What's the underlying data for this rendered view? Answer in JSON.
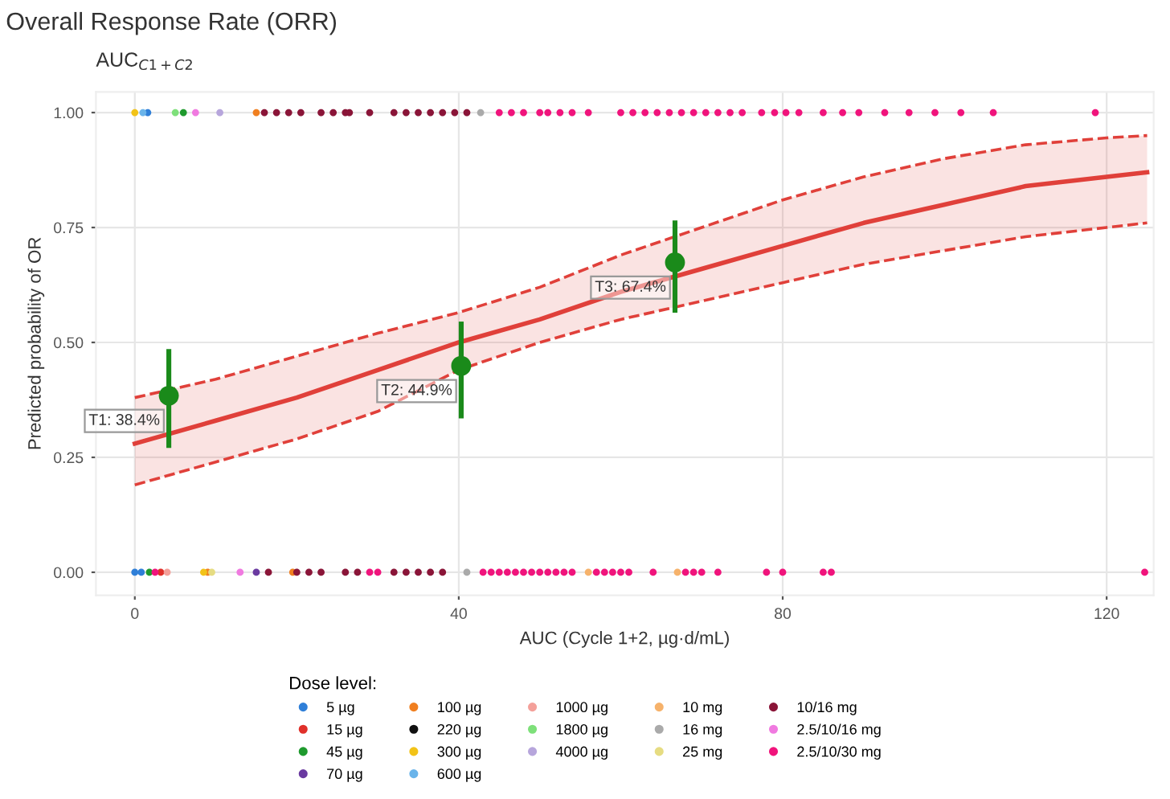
{
  "chart_data": {
    "type": "scatter",
    "title": "Overall Response Rate (ORR)",
    "subtitle": "AUC$_{C1+C2}$",
    "xlabel": "AUC (Cycle 1+2, µg·d/mL)",
    "ylabel": "Predicted probability of OR",
    "legend_title": "Dose level:",
    "legend": "bottom",
    "grid": true,
    "marker": "circle",
    "xlim": [
      -4.8,
      125.8
    ],
    "xticks": [
      0,
      40,
      80,
      120
    ],
    "ylim": [
      -0.05,
      1.045
    ],
    "yticks": [
      {
        "value": 0,
        "label": "0.00"
      },
      {
        "value": 0.25,
        "label": "0.25"
      },
      {
        "value": 0.5,
        "label": "0.50"
      },
      {
        "value": 0.75,
        "label": "0.75"
      },
      {
        "value": 1,
        "label": "1.00"
      }
    ],
    "series": [
      {
        "type": "line",
        "color": "#e0403a",
        "line_style": "dashed",
        "marker": "none",
        "x": [
          0,
          10,
          20,
          30,
          40,
          50,
          60,
          70,
          80,
          90,
          100,
          110,
          120,
          125
        ],
        "values": [
          0.19,
          0.24,
          0.29,
          0.35,
          0.44,
          0.5,
          0.55,
          0.59,
          0.63,
          0.67,
          0.7,
          0.73,
          0.75,
          0.76
        ]
      },
      {
        "type": "line",
        "color": "#e0403a",
        "line_style": "dashed",
        "marker": "none",
        "x": [
          0,
          10,
          20,
          30,
          40,
          50,
          60,
          70,
          80,
          90,
          100,
          110,
          120,
          125
        ],
        "values": [
          0.38,
          0.42,
          0.47,
          0.52,
          0.565,
          0.62,
          0.69,
          0.75,
          0.81,
          0.86,
          0.9,
          0.93,
          0.945,
          0.95
        ]
      },
      {
        "type": "line",
        "color": "#e0403a",
        "line_style": "solid",
        "marker": "none",
        "x": [
          0,
          10,
          20,
          30,
          40,
          50,
          60,
          70,
          80,
          90,
          100,
          110,
          120,
          125
        ],
        "values": [
          0.28,
          0.33,
          0.38,
          0.44,
          0.5,
          0.55,
          0.61,
          0.66,
          0.71,
          0.76,
          0.8,
          0.84,
          0.86,
          0.87
        ],
        "lower": [
          0.19,
          0.24,
          0.29,
          0.35,
          0.44,
          0.5,
          0.55,
          0.59,
          0.63,
          0.67,
          0.7,
          0.73,
          0.75,
          0.76
        ],
        "upper": [
          0.38,
          0.42,
          0.47,
          0.52,
          0.565,
          0.62,
          0.69,
          0.75,
          0.81,
          0.86,
          0.9,
          0.93,
          0.945,
          0.95
        ]
      },
      {
        "type": "scatter",
        "color": "#1a8a1a",
        "x": [
          4.2,
          40.3,
          66.7
        ],
        "values": [
          0.384,
          0.449,
          0.674
        ],
        "errors": [
          [
            0.276,
            0.48
          ],
          [
            0.34,
            0.54
          ],
          [
            0.57,
            0.76
          ]
        ]
      },
      {
        "name": "5 µg",
        "color": "#2f7fd8",
        "x": [
          1.6,
          0,
          0.8
        ],
        "values": [
          1,
          0,
          0
        ]
      },
      {
        "name": "15 µg",
        "color": "#e0302a",
        "x": [
          3.2
        ],
        "values": [
          0
        ]
      },
      {
        "name": "45 µg",
        "color": "#1f9a2e",
        "x": [
          6,
          1.8
        ],
        "values": [
          1,
          0
        ]
      },
      {
        "name": "70 µg",
        "color": "#6a3aa0",
        "x": [
          15
        ],
        "values": [
          0
        ]
      },
      {
        "name": "100 µg",
        "color": "#f07f20",
        "x": [
          15,
          9,
          19.5
        ],
        "values": [
          1,
          0,
          0
        ]
      },
      {
        "name": "220 µg",
        "color": "#111111"
      },
      {
        "name": "300 µg",
        "color": "#f2c318",
        "x": [
          0,
          8.5
        ],
        "values": [
          1,
          0
        ]
      },
      {
        "name": "600 µg",
        "color": "#6ab4ea",
        "x": [
          1
        ],
        "values": [
          1
        ]
      },
      {
        "name": "1000 µg",
        "color": "#f4a09a",
        "x": [
          4
        ],
        "values": [
          0
        ]
      },
      {
        "name": "1800 µg",
        "color": "#7ee07a",
        "x": [
          5
        ],
        "values": [
          1
        ]
      },
      {
        "name": "4000 µg",
        "color": "#b7a6dc",
        "x": [
          10.5
        ],
        "values": [
          1
        ]
      },
      {
        "name": "10 mg",
        "color": "#f6b26b",
        "x": [
          56,
          67
        ],
        "values": [
          0,
          0
        ]
      },
      {
        "name": "16 mg",
        "color": "#aaaaaa",
        "x": [
          42.7,
          41
        ],
        "values": [
          1,
          0
        ]
      },
      {
        "name": "25 mg",
        "color": "#e6dc82",
        "x": [
          9.5
        ],
        "values": [
          0
        ]
      },
      {
        "name": "10/16 mg",
        "color": "#8a1538",
        "x": [
          16,
          17.5,
          19,
          20.5,
          23,
          24.5,
          26,
          26.5,
          29,
          32,
          33.5,
          35,
          36.5,
          38,
          39.5,
          41,
          16.5,
          20,
          21.5,
          23,
          26,
          27.5,
          32,
          33.5,
          35,
          36.5,
          38
        ],
        "values": [
          1,
          1,
          1,
          1,
          1,
          1,
          1,
          1,
          1,
          1,
          1,
          1,
          1,
          1,
          1,
          1,
          0,
          0,
          0,
          0,
          0,
          0,
          0,
          0,
          0,
          0,
          0
        ]
      },
      {
        "name": "2.5/10/16 mg",
        "color": "#f07ae0",
        "x": [
          7.5,
          13
        ],
        "values": [
          1,
          0
        ]
      },
      {
        "name": "2.5/10/30 mg",
        "color": "#f0147c",
        "x": [
          45,
          46.5,
          48,
          50,
          51,
          52.5,
          54,
          56,
          60,
          61.5,
          63,
          64.5,
          66,
          67.5,
          69,
          70.5,
          72,
          73.5,
          75,
          77.4,
          79,
          80.4,
          82,
          85,
          87.4,
          89.4,
          92.6,
          95.6,
          98.8,
          102,
          106,
          118.6,
          2.5,
          29,
          30,
          43,
          44,
          45,
          46,
          47,
          48,
          49,
          50,
          51,
          52,
          53,
          54,
          57,
          58,
          59,
          60,
          61,
          64,
          68,
          69,
          70,
          72,
          78,
          80,
          85,
          86,
          124.7
        ],
        "values": [
          1,
          1,
          1,
          1,
          1,
          1,
          1,
          1,
          1,
          1,
          1,
          1,
          1,
          1,
          1,
          1,
          1,
          1,
          1,
          1,
          1,
          1,
          1,
          1,
          1,
          1,
          1,
          1,
          1,
          1,
          1,
          1,
          0,
          0,
          0,
          0,
          0,
          0,
          0,
          0,
          0,
          0,
          0,
          0,
          0,
          0,
          0,
          0,
          0,
          0,
          0,
          0,
          0,
          0,
          0,
          0,
          0,
          0,
          0,
          0,
          0,
          0
        ]
      }
    ],
    "annotations": [
      {
        "text": "T1: 38.4%",
        "x": 4.2,
        "y": 0.384
      },
      {
        "text": "T2: 44.9%",
        "x": 40.3,
        "y": 0.449
      },
      {
        "text": "T3: 67.4%",
        "x": 66.7,
        "y": 0.674
      }
    ]
  }
}
